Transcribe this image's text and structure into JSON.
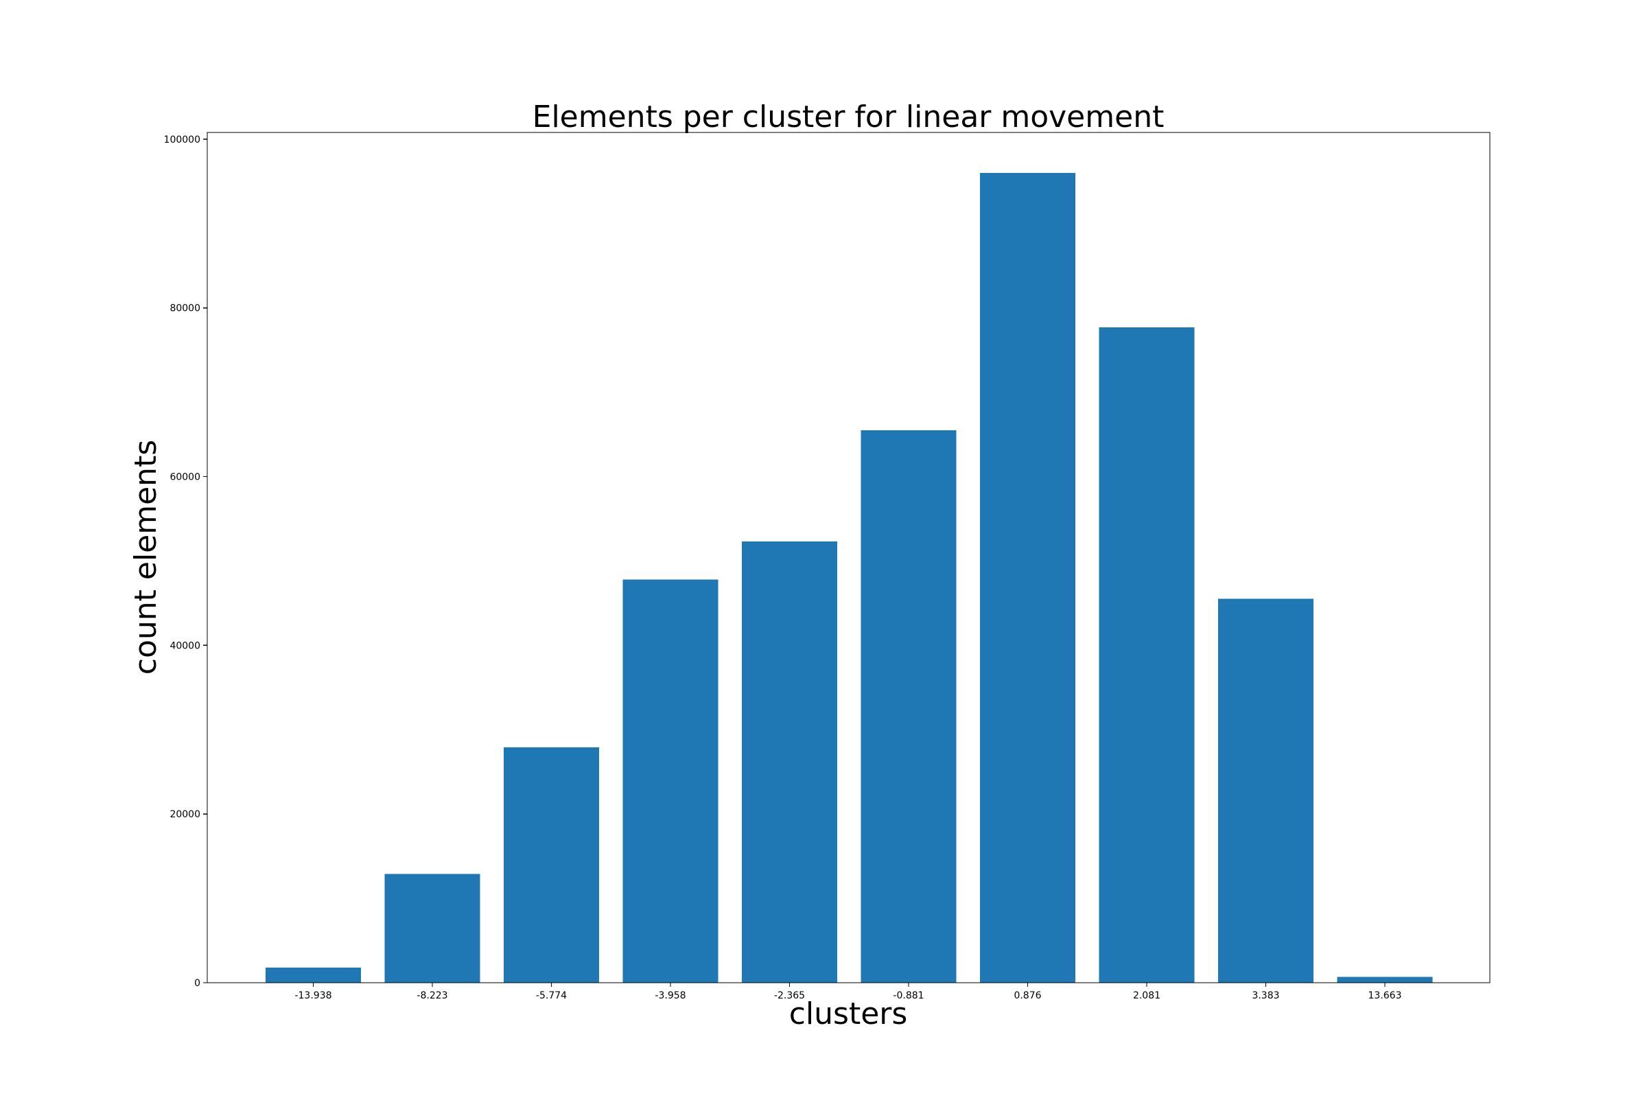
{
  "chart_data": {
    "type": "bar",
    "title": "Elements per cluster for linear movement",
    "xlabel": "clusters",
    "ylabel": "count elements",
    "categories": [
      "-13.938",
      "-8.223",
      "-5.774",
      "-3.958",
      "-2.365",
      "-0.881",
      "0.876",
      "2.081",
      "3.383",
      "13.663"
    ],
    "values": [
      1800,
      12900,
      27900,
      47800,
      52300,
      65500,
      96000,
      77700,
      45500,
      700
    ],
    "ylim": [
      0,
      100800
    ],
    "yticks": [
      0,
      20000,
      40000,
      60000,
      80000,
      100000
    ],
    "ytick_labels": [
      "0",
      "20000",
      "40000",
      "60000",
      "80000",
      "100000"
    ],
    "grid": false,
    "bar_color": "#1f77b4"
  }
}
